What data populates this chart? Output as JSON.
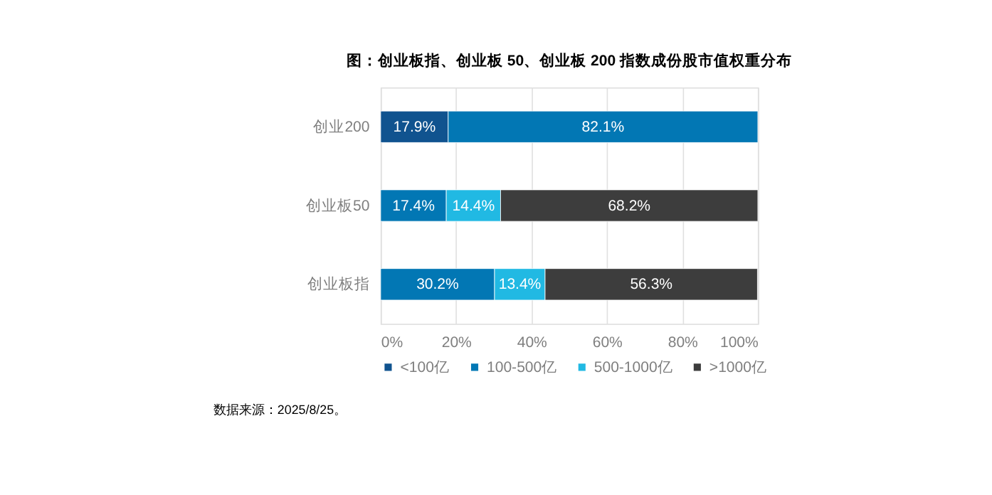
{
  "chart_data": {
    "type": "bar",
    "orientation": "horizontal",
    "stacked": true,
    "title": "图：创业板指、创业板 50、创业板 200 指数成份股市值权重分布",
    "categories": [
      "创业200",
      "创业板50",
      "创业板指"
    ],
    "series": [
      {
        "name": "<100亿",
        "color": "#10538f",
        "values": [
          17.9,
          null,
          null
        ]
      },
      {
        "name": "100-500亿",
        "color": "#0277b4",
        "values": [
          82.1,
          17.4,
          30.2
        ]
      },
      {
        "name": "500-1000亿",
        "color": "#21b9e3",
        "values": [
          null,
          14.4,
          13.4
        ]
      },
      {
        "name": ">1000亿",
        "color": "#3d3d3d",
        "values": [
          null,
          68.2,
          56.3
        ]
      }
    ],
    "xlim": [
      0,
      100
    ],
    "xticks": [
      {
        "value": 0,
        "label": "0%"
      },
      {
        "value": 20,
        "label": "20%"
      },
      {
        "value": 40,
        "label": "40%"
      },
      {
        "value": 60,
        "label": "60%"
      },
      {
        "value": 80,
        "label": "80%"
      },
      {
        "value": 100,
        "label": "100%"
      }
    ],
    "value_labels": [
      [
        "17.9%",
        null,
        null
      ],
      [
        "82.1%",
        "17.4%",
        "30.2%"
      ],
      [
        null,
        "14.4%",
        "13.4%"
      ],
      [
        null,
        "68.2%",
        "56.3%"
      ]
    ],
    "grid": "x",
    "legend": "bottom",
    "annotations": [
      "数据来源：2025/8/25。"
    ]
  }
}
